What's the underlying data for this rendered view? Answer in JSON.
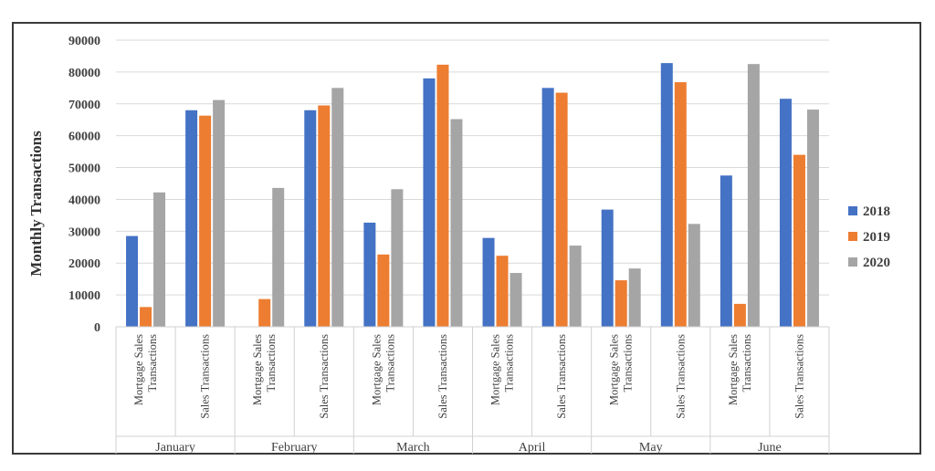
{
  "chart_data": {
    "type": "bar",
    "title": "",
    "ylabel": "Monthly Transactions",
    "ylim": [
      0,
      90000
    ],
    "yticks": [
      "0",
      "10000",
      "20000",
      "30000",
      "40000",
      "50000",
      "60000",
      "70000",
      "80000",
      "90000"
    ],
    "grid": true,
    "legend_position": "right",
    "groups": [
      {
        "label": "January",
        "categories": [
          "Mortgage Sales Transactions",
          "Sales Transactions"
        ]
      },
      {
        "label": "February",
        "categories": [
          "Mortgage Sales Transactions",
          "Sales Transactions"
        ]
      },
      {
        "label": "March",
        "categories": [
          "Mortgage Sales Transactions",
          "Sales Transactions"
        ]
      },
      {
        "label": "April",
        "categories": [
          "Mortgage Sales Transactions",
          "Sales Transactions"
        ]
      },
      {
        "label": "May",
        "categories": [
          "Mortgage Sales Transactions",
          "Sales Transactions"
        ]
      },
      {
        "label": "June",
        "categories": [
          "Mortgage Sales Transactions",
          "Sales Transactions"
        ]
      }
    ],
    "category_label_lines": {
      "Mortgage Sales Transactions": [
        "Mortgage Sales",
        "Transactions"
      ],
      "Sales Transactions": [
        "Sales Transactions"
      ]
    },
    "series": [
      {
        "name": "2018",
        "color": "#4472C4",
        "values": [
          28500,
          68000,
          0,
          68000,
          32700,
          78000,
          27900,
          75000,
          36800,
          82800,
          47500,
          71600
        ]
      },
      {
        "name": "2019",
        "color": "#ED7D31",
        "values": [
          6200,
          66300,
          8700,
          69500,
          22700,
          82300,
          22300,
          73500,
          14600,
          76800,
          7200,
          54000
        ]
      },
      {
        "name": "2020",
        "color": "#A5A5A5",
        "values": [
          42200,
          71200,
          43600,
          75000,
          43200,
          65200,
          16900,
          25500,
          18300,
          32300,
          82500,
          68200
        ]
      }
    ]
  }
}
